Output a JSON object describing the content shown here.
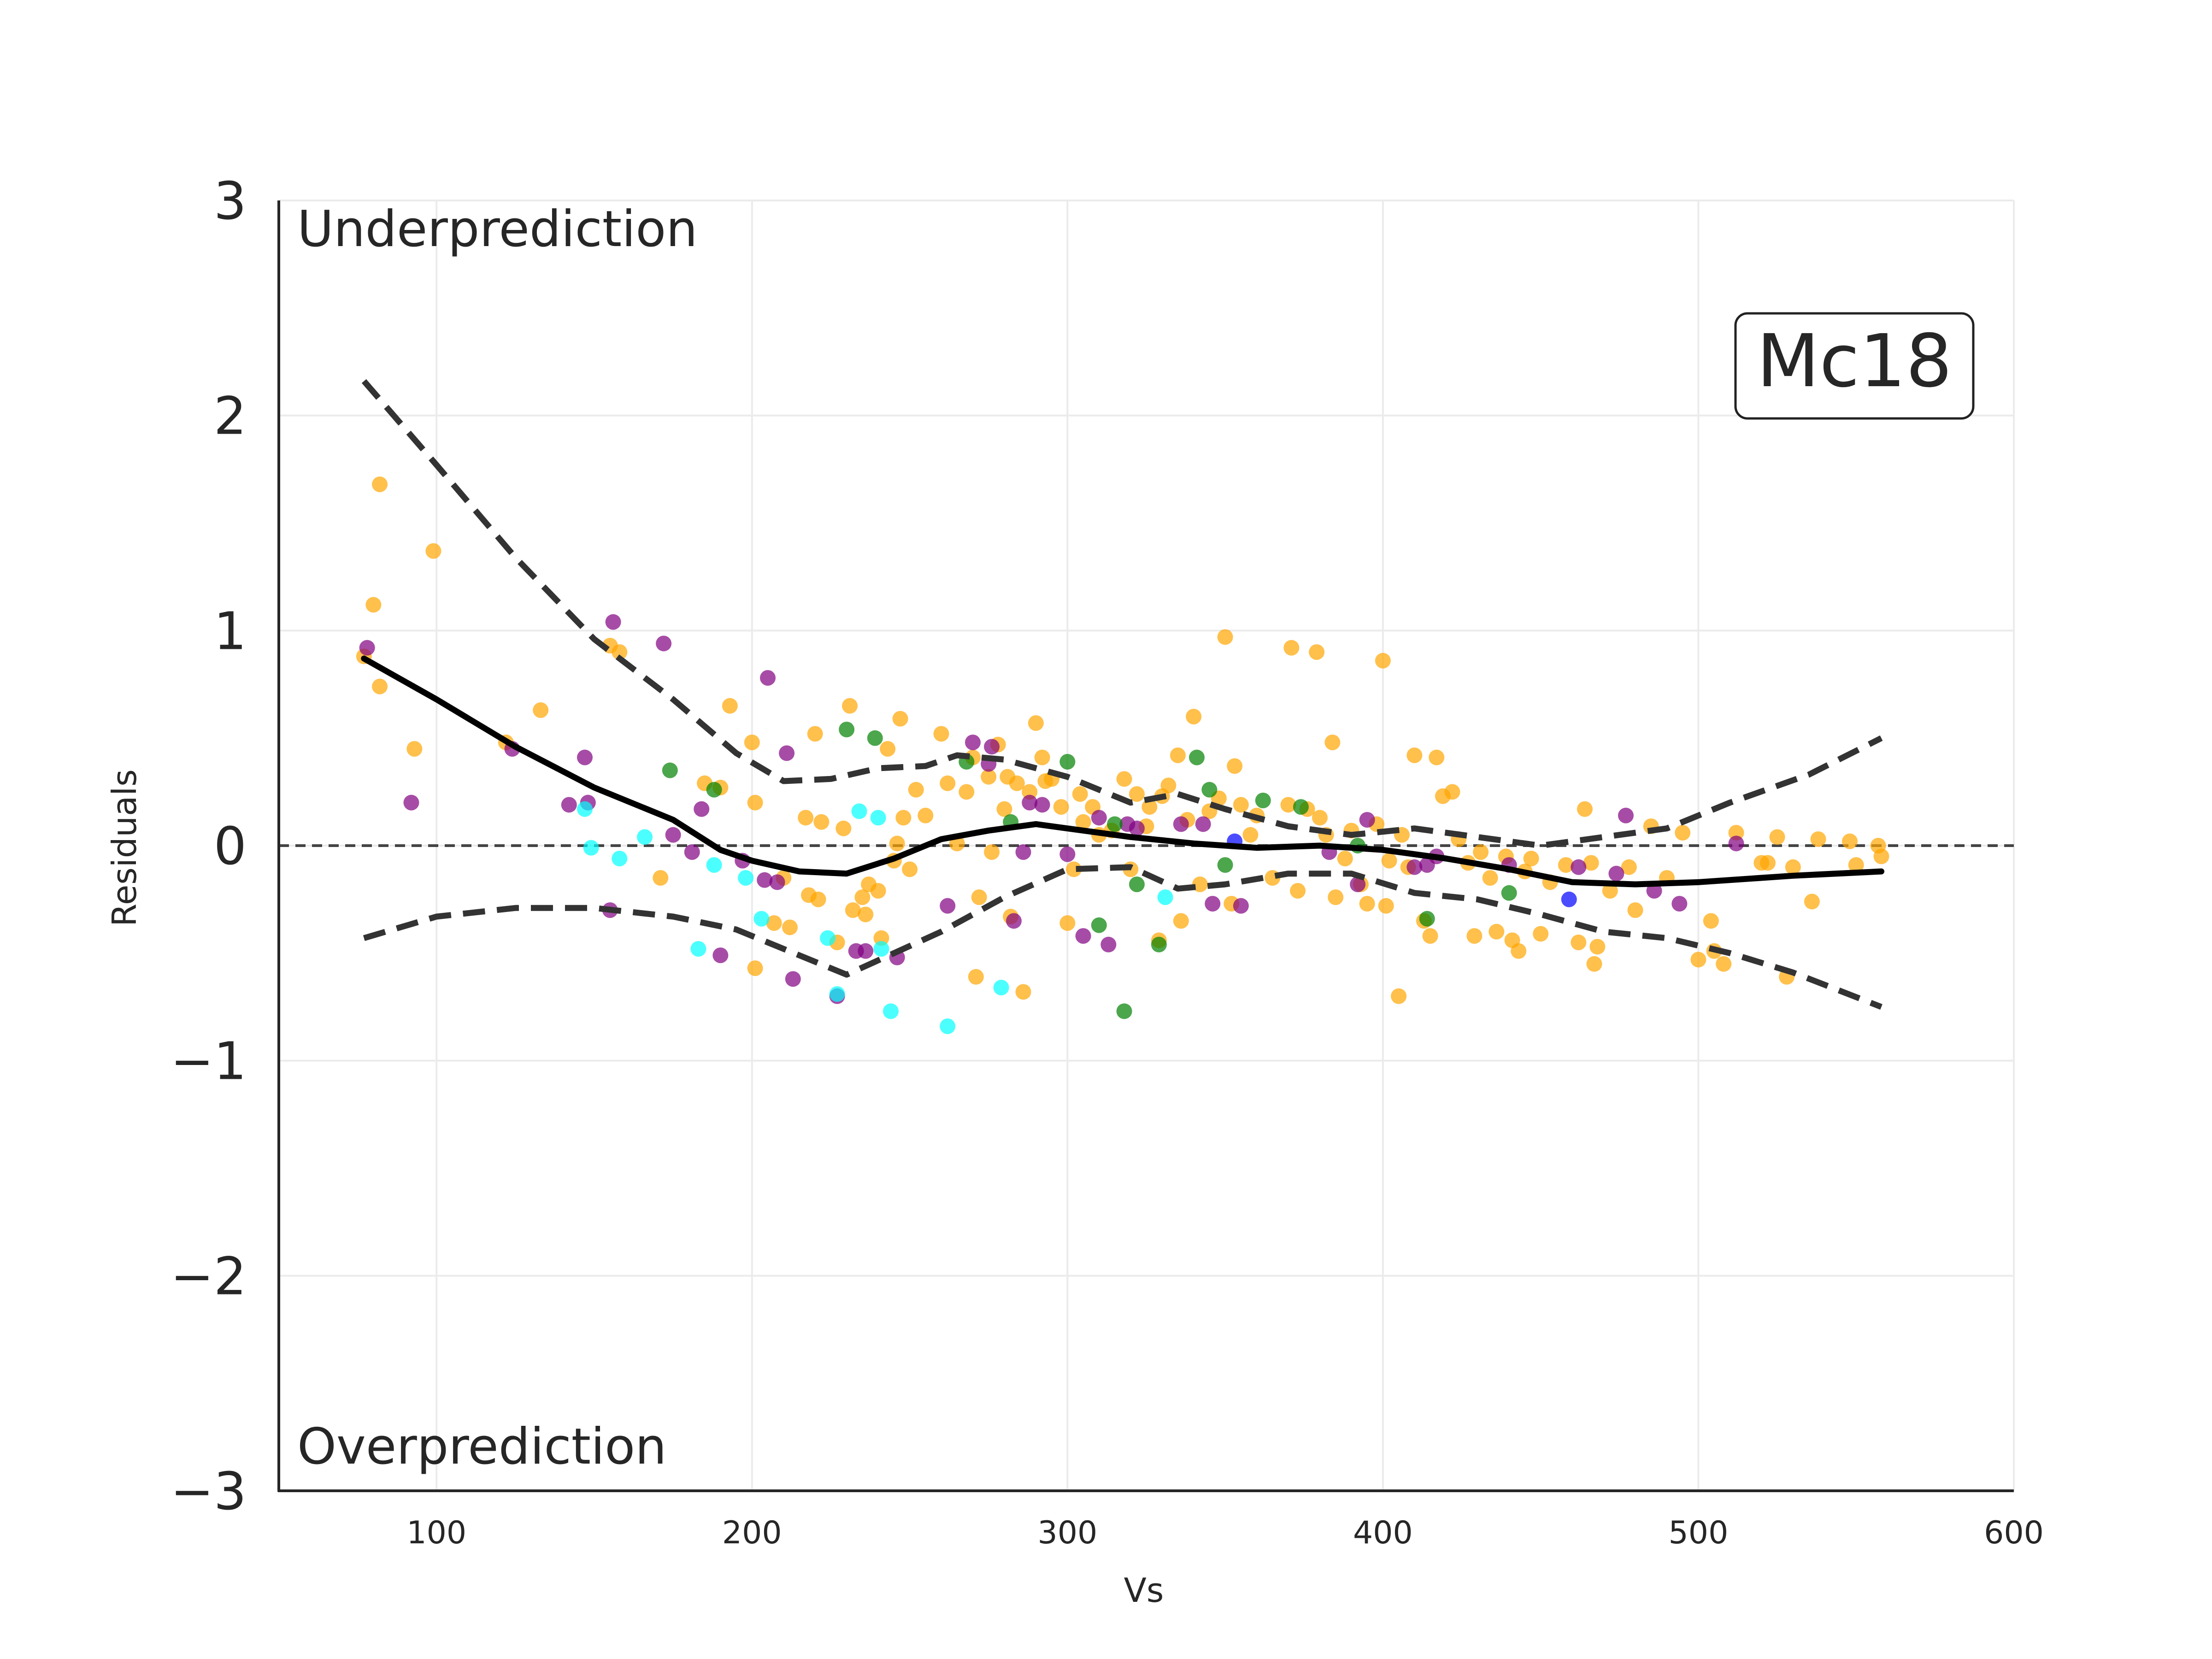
{
  "chart_data": {
    "type": "scatter",
    "title": "",
    "xlabel": "Vs",
    "ylabel": "Residuals",
    "xlim": [
      50,
      600
    ],
    "ylim": [
      -3,
      3
    ],
    "xticks": [
      100,
      200,
      300,
      400,
      500,
      600
    ],
    "yticks": [
      3,
      2,
      1,
      0,
      -1,
      -2,
      -3
    ],
    "xtick_labels": [
      "100",
      "200",
      "300",
      "400",
      "500",
      "600"
    ],
    "ytick_labels": [
      "3",
      "2",
      "1",
      "0",
      "−1",
      "−2",
      "−3"
    ],
    "grid": true,
    "zero_line": 0,
    "annotations": {
      "top": "Underprediction",
      "bottom": "Overprediction",
      "model_box": "Mc18"
    },
    "colors": {
      "orange": "#ffa500",
      "purple": "#800080",
      "green": "#008000",
      "cyan": "#00ffff",
      "blue": "#0000ff",
      "trend": "#000000",
      "band": "#333333"
    },
    "series": [
      {
        "color": "#ffa500",
        "points": [
          [
            77,
            0.88
          ],
          [
            80,
            1.12
          ],
          [
            82,
            1.68
          ],
          [
            82,
            0.74
          ],
          [
            93,
            0.45
          ],
          [
            99,
            1.37
          ],
          [
            122,
            0.48
          ],
          [
            133,
            0.63
          ],
          [
            155,
            0.93
          ],
          [
            158,
            0.9
          ],
          [
            171,
            -0.15
          ],
          [
            185,
            0.29
          ],
          [
            190,
            0.27
          ],
          [
            193,
            0.65
          ],
          [
            200,
            0.48
          ],
          [
            201,
            0.2
          ],
          [
            201,
            -0.57
          ],
          [
            207,
            -0.36
          ],
          [
            210,
            -0.15
          ],
          [
            212,
            -0.38
          ],
          [
            217,
            0.13
          ],
          [
            218,
            -0.23
          ],
          [
            220,
            0.52
          ],
          [
            221,
            -0.25
          ],
          [
            222,
            0.11
          ],
          [
            227,
            -0.45
          ],
          [
            229,
            0.08
          ],
          [
            231,
            0.65
          ],
          [
            232,
            -0.3
          ],
          [
            235,
            -0.24
          ],
          [
            236,
            -0.32
          ],
          [
            237,
            -0.18
          ],
          [
            240,
            -0.21
          ],
          [
            241,
            -0.43
          ],
          [
            243,
            0.45
          ],
          [
            245,
            -0.07
          ],
          [
            246,
            0.01
          ],
          [
            247,
            0.59
          ],
          [
            248,
            0.13
          ],
          [
            250,
            -0.11
          ],
          [
            252,
            0.26
          ],
          [
            255,
            0.14
          ],
          [
            260,
            0.52
          ],
          [
            262,
            0.29
          ],
          [
            265,
            0.01
          ],
          [
            268,
            0.25
          ],
          [
            270,
            0.41
          ],
          [
            271,
            -0.61
          ],
          [
            272,
            -0.24
          ],
          [
            275,
            0.32
          ],
          [
            276,
            -0.03
          ],
          [
            278,
            0.47
          ],
          [
            280,
            0.17
          ],
          [
            281,
            0.32
          ],
          [
            282,
            -0.33
          ],
          [
            284,
            0.29
          ],
          [
            286,
            -0.68
          ],
          [
            288,
            0.25
          ],
          [
            290,
            0.57
          ],
          [
            292,
            0.41
          ],
          [
            293,
            0.3
          ],
          [
            295,
            0.31
          ],
          [
            298,
            0.18
          ],
          [
            300,
            -0.36
          ],
          [
            302,
            -0.11
          ],
          [
            304,
            0.24
          ],
          [
            305,
            0.11
          ],
          [
            308,
            0.18
          ],
          [
            310,
            0.05
          ],
          [
            314,
            0.07
          ],
          [
            318,
            0.31
          ],
          [
            320,
            -0.11
          ],
          [
            322,
            0.24
          ],
          [
            325,
            0.09
          ],
          [
            326,
            0.18
          ],
          [
            329,
            -0.44
          ],
          [
            330,
            0.23
          ],
          [
            332,
            0.28
          ],
          [
            335,
            0.42
          ],
          [
            336,
            -0.35
          ],
          [
            338,
            0.12
          ],
          [
            340,
            0.6
          ],
          [
            342,
            -0.18
          ],
          [
            345,
            0.16
          ],
          [
            348,
            0.22
          ],
          [
            350,
            0.97
          ],
          [
            352,
            -0.27
          ],
          [
            353,
            0.37
          ],
          [
            355,
            0.19
          ],
          [
            358,
            0.05
          ],
          [
            360,
            0.14
          ],
          [
            365,
            -0.15
          ],
          [
            370,
            0.19
          ],
          [
            371,
            0.92
          ],
          [
            373,
            -0.21
          ],
          [
            376,
            0.17
          ],
          [
            379,
            0.9
          ],
          [
            380,
            0.13
          ],
          [
            382,
            0.05
          ],
          [
            384,
            0.48
          ],
          [
            385,
            -0.24
          ],
          [
            388,
            -0.06
          ],
          [
            390,
            0.07
          ],
          [
            393,
            -0.18
          ],
          [
            395,
            -0.27
          ],
          [
            398,
            0.1
          ],
          [
            400,
            0.86
          ],
          [
            401,
            -0.28
          ],
          [
            402,
            -0.07
          ],
          [
            405,
            -0.7
          ],
          [
            406,
            0.05
          ],
          [
            408,
            -0.1
          ],
          [
            410,
            0.42
          ],
          [
            413,
            -0.35
          ],
          [
            415,
            -0.42
          ],
          [
            417,
            0.41
          ],
          [
            419,
            0.23
          ],
          [
            422,
            0.25
          ],
          [
            424,
            0.03
          ],
          [
            427,
            -0.08
          ],
          [
            429,
            -0.42
          ],
          [
            431,
            -0.03
          ],
          [
            434,
            -0.15
          ],
          [
            436,
            -0.4
          ],
          [
            439,
            -0.05
          ],
          [
            441,
            -0.44
          ],
          [
            443,
            -0.49
          ],
          [
            445,
            -0.12
          ],
          [
            447,
            -0.06
          ],
          [
            450,
            -0.41
          ],
          [
            453,
            -0.17
          ],
          [
            458,
            -0.09
          ],
          [
            462,
            -0.45
          ],
          [
            464,
            0.17
          ],
          [
            466,
            -0.08
          ],
          [
            467,
            -0.55
          ],
          [
            468,
            -0.47
          ],
          [
            472,
            -0.21
          ],
          [
            478,
            -0.1
          ],
          [
            480,
            -0.3
          ],
          [
            485,
            0.09
          ],
          [
            490,
            -0.15
          ],
          [
            495,
            0.06
          ],
          [
            500,
            -0.53
          ],
          [
            504,
            -0.35
          ],
          [
            505,
            -0.49
          ],
          [
            508,
            -0.55
          ],
          [
            512,
            0.06
          ],
          [
            520,
            -0.08
          ],
          [
            522,
            -0.08
          ],
          [
            525,
            0.04
          ],
          [
            528,
            -0.61
          ],
          [
            530,
            -0.1
          ],
          [
            536,
            -0.26
          ],
          [
            538,
            0.03
          ],
          [
            548,
            0.02
          ],
          [
            550,
            -0.09
          ],
          [
            557,
            0
          ],
          [
            558,
            -0.05
          ]
        ]
      },
      {
        "color": "#800080",
        "points": [
          [
            78,
            0.92
          ],
          [
            92,
            0.2
          ],
          [
            124,
            0.45
          ],
          [
            142,
            0.19
          ],
          [
            147,
            0.41
          ],
          [
            148,
            0.2
          ],
          [
            155,
            -0.3
          ],
          [
            156,
            1.04
          ],
          [
            172,
            0.94
          ],
          [
            175,
            0.05
          ],
          [
            181,
            -0.03
          ],
          [
            184,
            0.17
          ],
          [
            190,
            -0.51
          ],
          [
            197,
            -0.07
          ],
          [
            204,
            -0.16
          ],
          [
            205,
            0.78
          ],
          [
            208,
            -0.17
          ],
          [
            211,
            0.43
          ],
          [
            213,
            -0.62
          ],
          [
            227,
            -0.7
          ],
          [
            233,
            -0.49
          ],
          [
            236,
            -0.49
          ],
          [
            246,
            -0.52
          ],
          [
            262,
            -0.28
          ],
          [
            270,
            0.48
          ],
          [
            275,
            0.38
          ],
          [
            276,
            0.46
          ],
          [
            283,
            -0.35
          ],
          [
            286,
            -0.03
          ],
          [
            288,
            0.2
          ],
          [
            292,
            0.19
          ],
          [
            300,
            -0.04
          ],
          [
            305,
            -0.42
          ],
          [
            310,
            0.13
          ],
          [
            313,
            -0.46
          ],
          [
            319,
            0.1
          ],
          [
            322,
            0.08
          ],
          [
            336,
            0.1
          ],
          [
            343,
            0.1
          ],
          [
            346,
            -0.27
          ],
          [
            355,
            -0.28
          ],
          [
            383,
            -0.03
          ],
          [
            392,
            -0.18
          ],
          [
            395,
            0.12
          ],
          [
            410,
            -0.1
          ],
          [
            414,
            -0.09
          ],
          [
            417,
            -0.05
          ],
          [
            440,
            -0.09
          ],
          [
            462,
            -0.1
          ],
          [
            474,
            -0.13
          ],
          [
            477,
            0.14
          ],
          [
            486,
            -0.21
          ],
          [
            494,
            -0.27
          ],
          [
            512,
            0.01
          ]
        ]
      },
      {
        "color": "#008000",
        "points": [
          [
            174,
            0.35
          ],
          [
            188,
            0.26
          ],
          [
            230,
            0.54
          ],
          [
            239,
            0.5
          ],
          [
            268,
            0.39
          ],
          [
            282,
            0.11
          ],
          [
            300,
            0.39
          ],
          [
            310,
            -0.37
          ],
          [
            315,
            0.1
          ],
          [
            318,
            -0.77
          ],
          [
            322,
            -0.18
          ],
          [
            329,
            -0.46
          ],
          [
            341,
            0.41
          ],
          [
            345,
            0.26
          ],
          [
            350,
            -0.09
          ],
          [
            362,
            0.21
          ],
          [
            374,
            0.18
          ],
          [
            392,
            0.0
          ],
          [
            414,
            -0.34
          ],
          [
            440,
            -0.22
          ]
        ]
      },
      {
        "color": "#00ffff",
        "points": [
          [
            147,
            0.17
          ],
          [
            149,
            -0.01
          ],
          [
            158,
            -0.06
          ],
          [
            166,
            0.04
          ],
          [
            183,
            -0.48
          ],
          [
            188,
            -0.09
          ],
          [
            198,
            -0.15
          ],
          [
            203,
            -0.34
          ],
          [
            224,
            -0.43
          ],
          [
            227,
            -0.69
          ],
          [
            234,
            0.16
          ],
          [
            240,
            0.13
          ],
          [
            241,
            -0.48
          ],
          [
            244,
            -0.77
          ],
          [
            262,
            -0.84
          ],
          [
            279,
            -0.66
          ],
          [
            331,
            -0.24
          ]
        ]
      },
      {
        "color": "#0000ff",
        "points": [
          [
            353,
            0.02
          ],
          [
            459,
            -0.25
          ]
        ]
      }
    ],
    "trend_line": [
      [
        77,
        0.87
      ],
      [
        100,
        0.68
      ],
      [
        125,
        0.46
      ],
      [
        150,
        0.27
      ],
      [
        175,
        0.12
      ],
      [
        190,
        -0.02
      ],
      [
        200,
        -0.07
      ],
      [
        215,
        -0.12
      ],
      [
        230,
        -0.13
      ],
      [
        245,
        -0.06
      ],
      [
        260,
        0.03
      ],
      [
        275,
        0.07
      ],
      [
        290,
        0.1
      ],
      [
        300,
        0.08
      ],
      [
        320,
        0.04
      ],
      [
        340,
        0.01
      ],
      [
        360,
        -0.01
      ],
      [
        380,
        0.0
      ],
      [
        400,
        -0.02
      ],
      [
        420,
        -0.06
      ],
      [
        440,
        -0.11
      ],
      [
        460,
        -0.17
      ],
      [
        480,
        -0.18
      ],
      [
        500,
        -0.17
      ],
      [
        530,
        -0.14
      ],
      [
        558,
        -0.12
      ]
    ],
    "upper_band": [
      [
        77,
        2.16
      ],
      [
        100,
        1.77
      ],
      [
        125,
        1.34
      ],
      [
        150,
        0.96
      ],
      [
        175,
        0.68
      ],
      [
        195,
        0.43
      ],
      [
        210,
        0.3
      ],
      [
        225,
        0.31
      ],
      [
        240,
        0.36
      ],
      [
        255,
        0.37
      ],
      [
        265,
        0.42
      ],
      [
        280,
        0.4
      ],
      [
        300,
        0.32
      ],
      [
        320,
        0.2
      ],
      [
        335,
        0.24
      ],
      [
        350,
        0.17
      ],
      [
        370,
        0.09
      ],
      [
        390,
        0.05
      ],
      [
        410,
        0.08
      ],
      [
        430,
        0.04
      ],
      [
        450,
        0.0
      ],
      [
        470,
        0.04
      ],
      [
        490,
        0.08
      ],
      [
        510,
        0.2
      ],
      [
        535,
        0.33
      ],
      [
        558,
        0.5
      ]
    ],
    "lower_band": [
      [
        77,
        -0.43
      ],
      [
        100,
        -0.33
      ],
      [
        125,
        -0.29
      ],
      [
        150,
        -0.29
      ],
      [
        175,
        -0.33
      ],
      [
        195,
        -0.39
      ],
      [
        210,
        -0.48
      ],
      [
        230,
        -0.6
      ],
      [
        245,
        -0.5
      ],
      [
        260,
        -0.4
      ],
      [
        280,
        -0.24
      ],
      [
        300,
        -0.11
      ],
      [
        320,
        -0.1
      ],
      [
        335,
        -0.2
      ],
      [
        350,
        -0.18
      ],
      [
        370,
        -0.13
      ],
      [
        390,
        -0.13
      ],
      [
        410,
        -0.22
      ],
      [
        430,
        -0.25
      ],
      [
        450,
        -0.32
      ],
      [
        470,
        -0.4
      ],
      [
        490,
        -0.43
      ],
      [
        510,
        -0.5
      ],
      [
        530,
        -0.59
      ],
      [
        558,
        -0.75
      ]
    ]
  }
}
